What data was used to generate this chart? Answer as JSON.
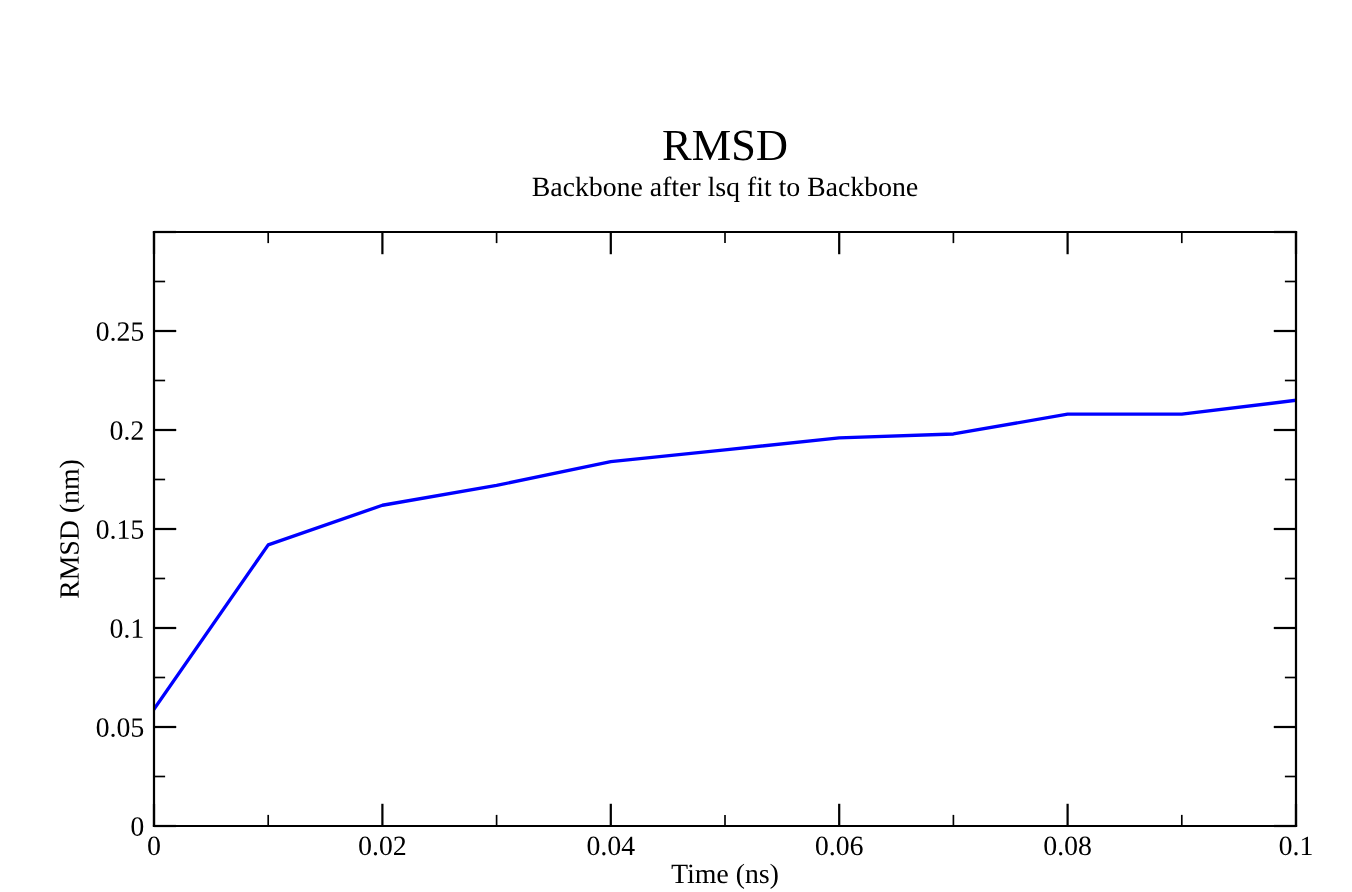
{
  "chart_data": {
    "type": "line",
    "title": "RMSD",
    "subtitle": "Backbone after lsq fit to Backbone",
    "xlabel": "Time (ns)",
    "ylabel": "RMSD (nm)",
    "x": [
      0,
      0.01,
      0.02,
      0.03,
      0.04,
      0.05,
      0.06,
      0.07,
      0.08,
      0.09,
      0.1
    ],
    "series": [
      {
        "color": "#0000ff",
        "values": [
          0.059,
          0.142,
          0.162,
          0.172,
          0.184,
          0.19,
          0.196,
          0.198,
          0.208,
          0.208,
          0.215
        ]
      }
    ],
    "xlim": [
      0,
      0.1
    ],
    "xticks": [
      0,
      0.02,
      0.04,
      0.06,
      0.08,
      0.1
    ],
    "ylim": [
      0,
      0.3
    ],
    "yticks": [
      0,
      0.05,
      0.1,
      0.15,
      0.2,
      0.25,
      {
        "value": 0.3,
        "label": null
      }
    ],
    "grid": false,
    "legend": false,
    "marker": "none",
    "line_style": "solid"
  }
}
